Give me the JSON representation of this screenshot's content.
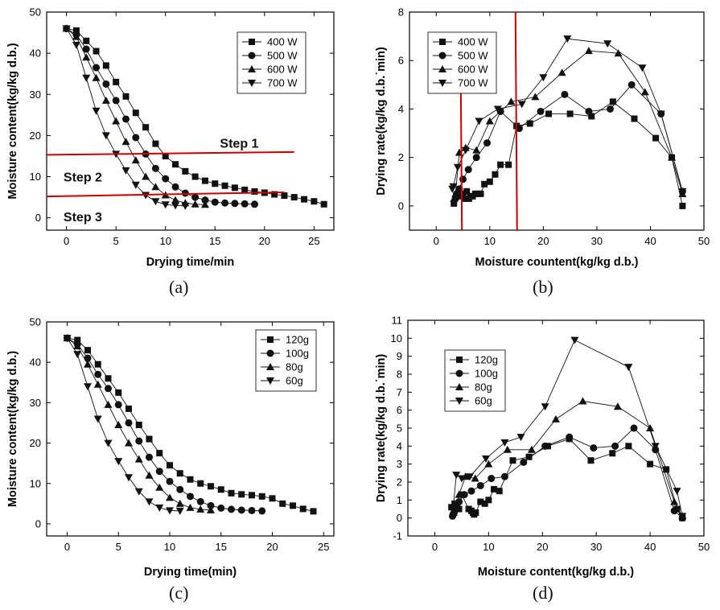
{
  "colors": {
    "axis": "#000000",
    "series": "#111111",
    "annotation": "#cc0000"
  },
  "chart_data": [
    {
      "id": "a",
      "type": "line",
      "caption": "(a)",
      "xlabel": "Drying time/min",
      "ylabel": "Moisture content(kg/kg d.b.)",
      "xlim": [
        -2,
        27
      ],
      "ylim": [
        -3,
        50
      ],
      "xticks": [
        "0",
        "5",
        "10",
        "15",
        "20",
        "25"
      ],
      "xtick_values": [
        0,
        5,
        10,
        15,
        20,
        25
      ],
      "yticks": [
        "0",
        "10",
        "20",
        "30",
        "40",
        "50"
      ],
      "ytick_values": [
        0,
        10,
        20,
        30,
        40,
        50
      ],
      "legend_position": "top-right",
      "series": [
        {
          "name": "400 W",
          "marker": "square",
          "x": [
            0,
            1,
            2,
            3,
            4,
            5,
            6,
            7,
            8,
            9,
            10,
            11,
            12,
            13,
            14,
            15,
            16,
            17,
            18,
            19,
            20,
            21,
            22,
            23,
            24,
            25,
            26
          ],
          "y": [
            46,
            45.5,
            43,
            40.5,
            37,
            33,
            29.5,
            25.5,
            22,
            18,
            15,
            13,
            11.3,
            10,
            9,
            8.3,
            7.8,
            7.3,
            6.8,
            6.4,
            6.1,
            5.7,
            5.4,
            5,
            4.5,
            4,
            3.3
          ]
        },
        {
          "name": "500 W",
          "marker": "circle",
          "x": [
            0,
            1,
            2,
            3,
            4,
            5,
            6,
            7,
            8,
            9,
            10,
            11,
            12,
            13,
            14,
            15,
            16,
            17,
            18,
            19
          ],
          "y": [
            46,
            44.5,
            41,
            36.5,
            32.5,
            28.5,
            24,
            19.5,
            15.5,
            12,
            9.5,
            7.5,
            6,
            5,
            4.3,
            3.8,
            3.6,
            3.5,
            3.4,
            3.3
          ]
        },
        {
          "name": "600 W",
          "marker": "triangle-up",
          "x": [
            0,
            1,
            2,
            3,
            4,
            5,
            6,
            7,
            8,
            9,
            10,
            11,
            12,
            13,
            14
          ],
          "y": [
            46,
            44,
            39,
            34,
            28.5,
            23.5,
            18.5,
            14,
            10,
            7.5,
            5.5,
            4.3,
            3.6,
            3.3,
            3.2
          ]
        },
        {
          "name": "700 W",
          "marker": "triangle-down",
          "x": [
            0,
            1,
            2,
            3,
            4,
            5,
            6,
            7,
            8,
            9,
            10,
            11,
            12
          ],
          "y": [
            46,
            42,
            34,
            26,
            20,
            15.5,
            11.5,
            8,
            5.5,
            4,
            3.2,
            3,
            2.9
          ]
        }
      ],
      "annotations": [
        {
          "text": "Step 1",
          "x": 15.5,
          "y": 17
        },
        {
          "text": "Step 2",
          "x": -0.3,
          "y": 8.8
        },
        {
          "text": "Step 3",
          "x": -0.3,
          "y": -0.8
        }
      ],
      "reference_lines": [
        {
          "x1": -2,
          "y1": 15.3,
          "x2": 23,
          "y2": 16
        },
        {
          "x1": -2,
          "y1": 5.2,
          "x2": 22,
          "y2": 6.2
        }
      ]
    },
    {
      "id": "b",
      "type": "line",
      "caption": "(b)",
      "xlabel": "Moisture countent(kg/kg d.b.)",
      "ylabel": "Drying rate(kg/kg d.b.˙min)",
      "xlim": [
        -5,
        50
      ],
      "ylim": [
        -1,
        8
      ],
      "xticks": [
        "0",
        "10",
        "20",
        "30",
        "40",
        "50"
      ],
      "xtick_values": [
        0,
        10,
        20,
        30,
        40,
        50
      ],
      "yticks": [
        "0",
        "2",
        "4",
        "6",
        "8"
      ],
      "ytick_values": [
        0,
        2,
        4,
        6,
        8
      ],
      "legend_position": "top-left",
      "series": [
        {
          "name": "400 W",
          "marker": "square",
          "x": [
            46,
            44,
            41,
            37,
            33,
            29,
            25,
            21,
            17.5,
            15,
            13.5,
            12,
            11,
            10,
            9,
            8.3,
            7.8,
            7.3,
            6.8,
            6.4,
            6.1,
            5.7,
            5.4,
            5,
            4.5,
            4,
            3.3
          ],
          "y": [
            0,
            2,
            2.8,
            3.6,
            4.3,
            3.7,
            3.8,
            3.8,
            3.4,
            3.3,
            1.7,
            1.7,
            1.3,
            1,
            0.9,
            0.5,
            0.5,
            0.5,
            0.4,
            0.4,
            0.3,
            0.6,
            0.3,
            0.5,
            0.5,
            0.4,
            0.1
          ]
        },
        {
          "name": "500 W",
          "marker": "circle",
          "x": [
            46,
            42,
            36.5,
            32.5,
            28.5,
            24,
            19.5,
            15.5,
            12,
            9.5,
            7.5,
            6,
            5,
            4.3,
            3.8,
            3.6
          ],
          "y": [
            0.6,
            3.8,
            5,
            4,
            3.9,
            4.6,
            3.9,
            3.2,
            3.9,
            2.6,
            2,
            1.5,
            1.1,
            0.7,
            0.5,
            0.3
          ]
        },
        {
          "name": "600 W",
          "marker": "triangle-up",
          "x": [
            46,
            44,
            39,
            34,
            28.5,
            23.5,
            18.5,
            14,
            10,
            7.5,
            5.5,
            4.3,
            3.6,
            3.3
          ],
          "y": [
            0.5,
            2,
            4.7,
            6.3,
            6.4,
            5.5,
            4.5,
            4.3,
            3.5,
            2.3,
            2.4,
            2.2,
            0.5,
            0.3
          ]
        },
        {
          "name": "700 W",
          "marker": "triangle-down",
          "x": [
            46,
            42,
            38.5,
            32,
            24.5,
            20,
            16,
            11.5,
            8,
            5.5,
            4,
            3.2,
            3
          ],
          "y": [
            0.6,
            3.8,
            5.7,
            6.7,
            6.9,
            5.3,
            4.2,
            4,
            3.5,
            2.3,
            1.6,
            0.8,
            0.7
          ]
        }
      ],
      "reference_lines": [
        {
          "x1": 4.6,
          "y1": 4.7,
          "x2": 4.8,
          "y2": -1
        },
        {
          "x1": 14.8,
          "y1": 8,
          "x2": 15.1,
          "y2": -1
        }
      ]
    },
    {
      "id": "c",
      "type": "line",
      "caption": "(c)",
      "xlabel": "Drying time(min)",
      "ylabel": "Moisture content(kg/kg d.b.)",
      "xlim": [
        -2,
        26
      ],
      "ylim": [
        -3,
        50
      ],
      "xticks": [
        "0",
        "5",
        "10",
        "15",
        "20",
        "25"
      ],
      "xtick_values": [
        0,
        5,
        10,
        15,
        20,
        25
      ],
      "yticks": [
        "0",
        "10",
        "20",
        "30",
        "40",
        "50"
      ],
      "ytick_values": [
        0,
        10,
        20,
        30,
        40,
        50
      ],
      "legend_position": "top-right",
      "series": [
        {
          "name": "120g",
          "marker": "square",
          "x": [
            0,
            1,
            2,
            3,
            4,
            5,
            6,
            7,
            8,
            9,
            10,
            11,
            12,
            13,
            14,
            15,
            16,
            17,
            18,
            19,
            20,
            21,
            22,
            23,
            24
          ],
          "y": [
            46,
            45.5,
            43,
            39.5,
            36,
            32.5,
            28.5,
            24.5,
            21,
            17.5,
            14.5,
            12.5,
            11,
            10,
            9.3,
            8.5,
            7.6,
            7.3,
            7.1,
            6.8,
            6.3,
            5,
            4.5,
            3.7,
            3.1
          ]
        },
        {
          "name": "100g",
          "marker": "circle",
          "x": [
            0,
            1,
            2,
            3,
            4,
            5,
            6,
            7,
            8,
            9,
            10,
            11,
            12,
            13,
            14,
            15,
            16,
            17,
            18,
            19
          ],
          "y": [
            46,
            44.5,
            41,
            37,
            33.5,
            29.5,
            25,
            20.5,
            16.5,
            13,
            10.5,
            8.5,
            6.8,
            5.5,
            4.5,
            3.9,
            3.6,
            3.4,
            3.3,
            3.2
          ]
        },
        {
          "name": "80g",
          "marker": "triangle-up",
          "x": [
            0,
            1,
            2,
            3,
            4,
            5,
            6,
            7,
            8,
            9,
            10,
            11,
            12,
            13,
            14
          ],
          "y": [
            46,
            44,
            39.5,
            34.5,
            29.5,
            24.5,
            20,
            16,
            12,
            9,
            6.5,
            5,
            4,
            3.6,
            3.4
          ]
        },
        {
          "name": "60g",
          "marker": "triangle-down",
          "x": [
            0,
            1,
            2,
            3,
            4,
            5,
            6,
            7,
            8,
            9,
            10,
            11
          ],
          "y": [
            46,
            42,
            34,
            26,
            20,
            15.5,
            11.5,
            8,
            5.5,
            4,
            3.3,
            3.2
          ]
        }
      ]
    },
    {
      "id": "d",
      "type": "line",
      "caption": "(d)",
      "xlabel": "Moisture content(kg/kg d.b.)",
      "ylabel": "Drying rate(kg/kg d.b.˙min)",
      "xlim": [
        -5,
        50
      ],
      "ylim": [
        -1,
        11
      ],
      "xticks": [
        "0",
        "10",
        "20",
        "30",
        "40",
        "50"
      ],
      "xtick_values": [
        0,
        10,
        20,
        30,
        40,
        50
      ],
      "yticks": [
        "-1",
        "0",
        "1",
        "2",
        "3",
        "4",
        "5",
        "6",
        "7",
        "8",
        "9",
        "10",
        "11"
      ],
      "ytick_values": [
        -1,
        0,
        1,
        2,
        3,
        4,
        5,
        6,
        7,
        8,
        9,
        10,
        11
      ],
      "legend_position": "top-left",
      "series": [
        {
          "name": "120g",
          "marker": "square",
          "x": [
            46,
            45,
            43,
            40,
            36,
            33,
            29,
            25,
            21,
            17.5,
            14.5,
            12,
            11,
            10,
            9.3,
            8.5,
            7.6,
            7.3,
            7.1,
            6.8,
            6.3,
            5,
            4.5,
            3.7,
            3.1
          ],
          "y": [
            0,
            0.5,
            2.7,
            3,
            4,
            3.6,
            3.2,
            4.4,
            4,
            3.4,
            3.2,
            1.5,
            1.6,
            1,
            0.8,
            0.9,
            0.3,
            0.2,
            0.3,
            0.4,
            0.5,
            1.3,
            0.5,
            0.8,
            0.6
          ]
        },
        {
          "name": "100g",
          "marker": "circle",
          "x": [
            46,
            44.5,
            41,
            37,
            33.5,
            29.5,
            25,
            20.5,
            16.5,
            13,
            10.5,
            8.5,
            6.8,
            5.5,
            4.5,
            3.9,
            3.6,
            3.4,
            3.3
          ],
          "y": [
            0,
            0.4,
            3.8,
            5,
            4,
            3.9,
            4.5,
            4,
            3.1,
            2.3,
            2.2,
            1.8,
            1.5,
            1.3,
            0.9,
            0.7,
            0.3,
            0.2,
            0.1
          ]
        },
        {
          "name": "80g",
          "marker": "triangle-up",
          "x": [
            46,
            44.5,
            40,
            34,
            27.5,
            22.5,
            18,
            13.5,
            10,
            7.5,
            5.7,
            4.5,
            3.8,
            3.5
          ],
          "y": [
            0.1,
            0.9,
            5,
            6.2,
            6.5,
            5.5,
            3.8,
            3.8,
            3,
            2.2,
            2.3,
            1.3,
            0.5,
            0.3
          ]
        },
        {
          "name": "60g",
          "marker": "triangle-down",
          "x": [
            46,
            45,
            41,
            36,
            26,
            20.5,
            16,
            13,
            9.5,
            6.5,
            5,
            4,
            3.4
          ],
          "y": [
            0.1,
            1.5,
            4,
            8.4,
            9.9,
            6.2,
            4.5,
            4.2,
            3.3,
            2.3,
            2.2,
            2.4,
            0.5
          ]
        }
      ]
    }
  ]
}
